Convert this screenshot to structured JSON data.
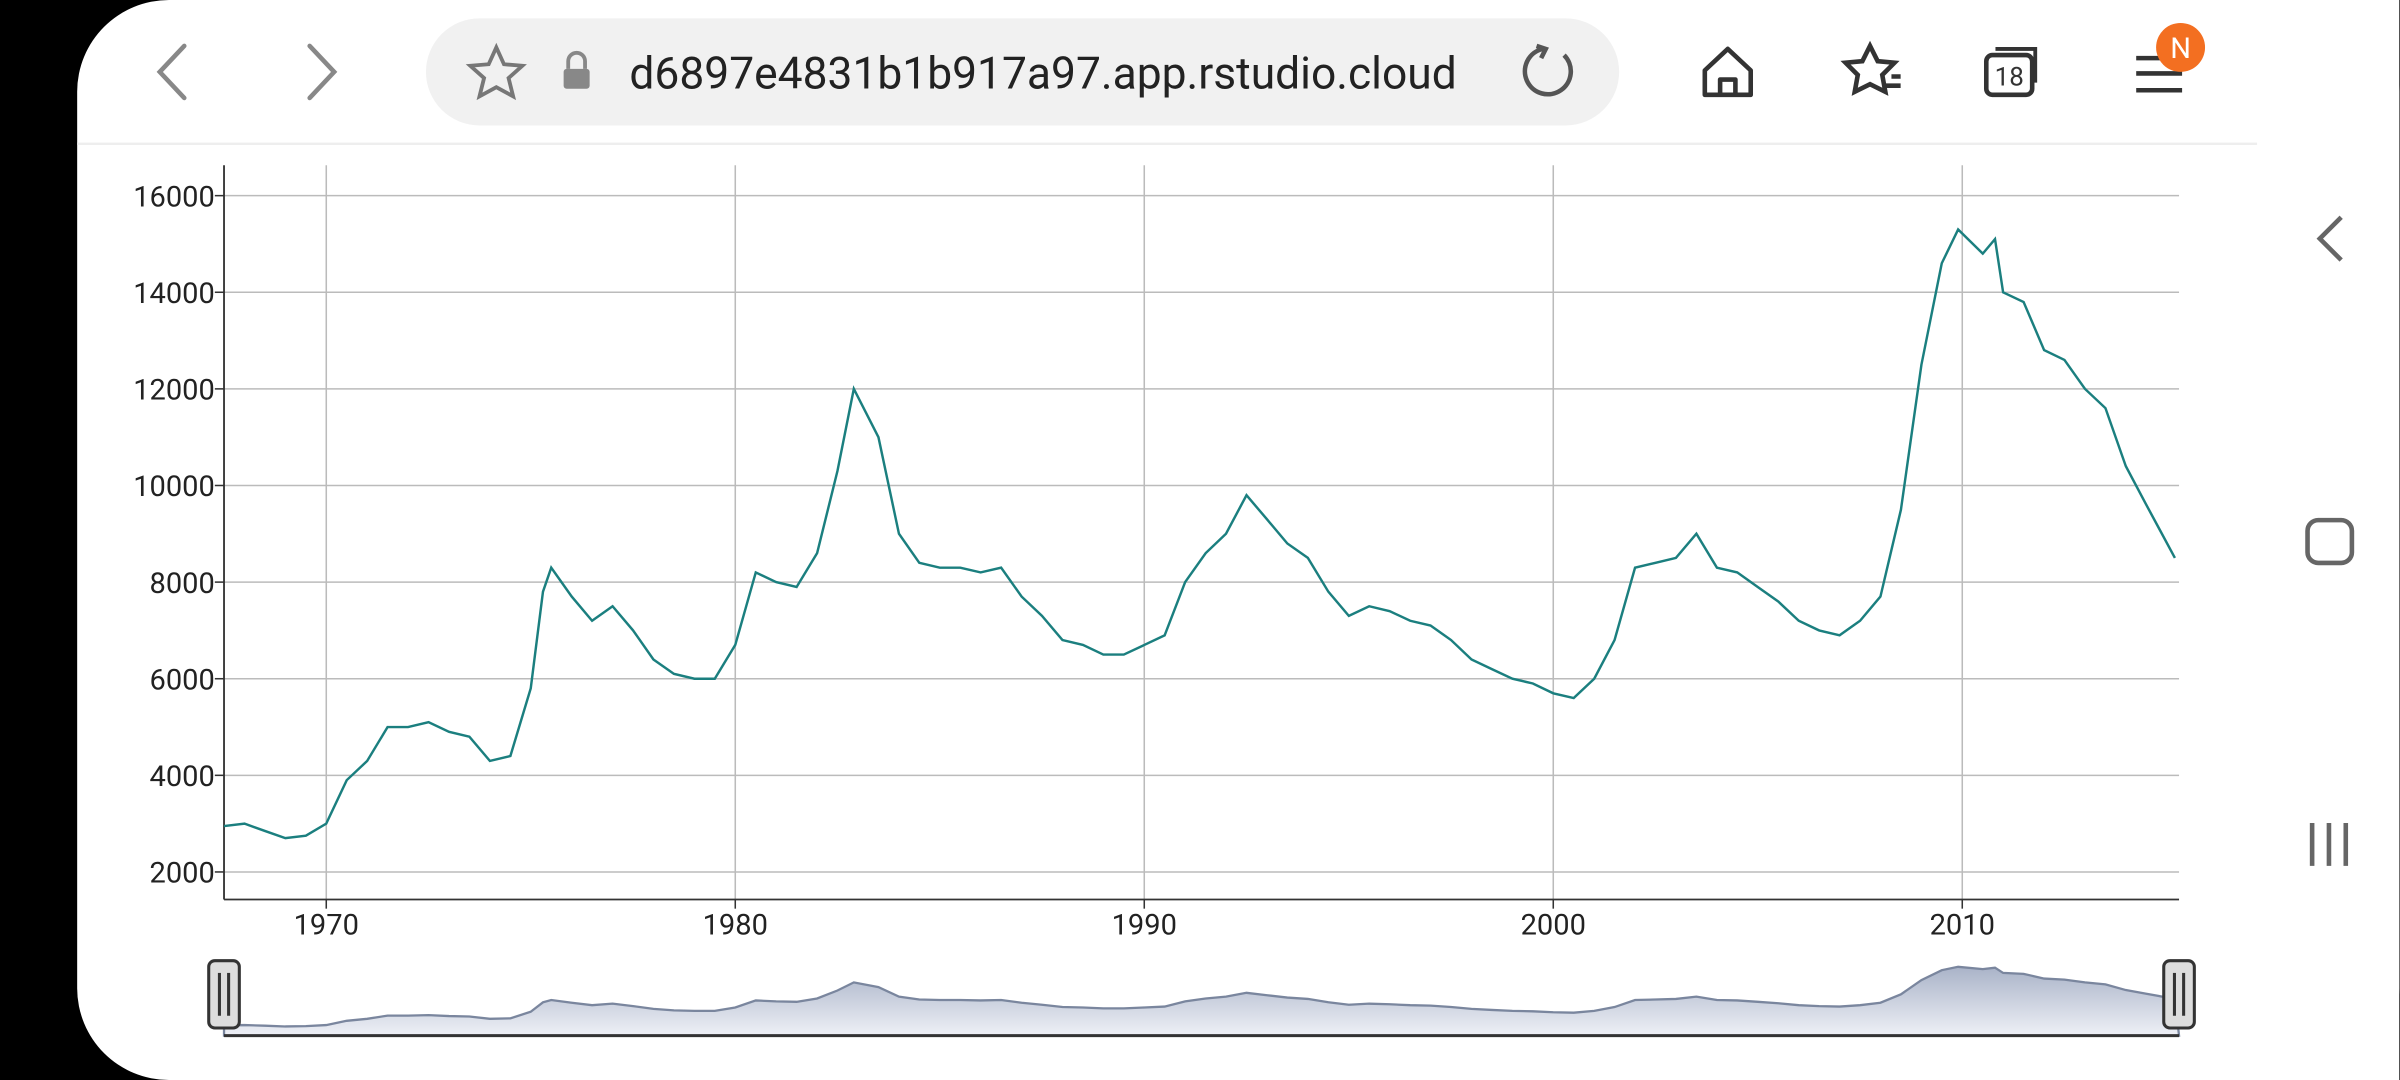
{
  "browser": {
    "url": "d6897e4831b1b917a97.app.rstudio.cloud",
    "tab_count": "18",
    "profile": "N"
  },
  "chart_data": {
    "type": "line",
    "color": "#1b7f7f",
    "grid": true,
    "x": [
      1967.5,
      1968.0,
      1968.5,
      1969.0,
      1969.5,
      1970.0,
      1970.5,
      1971.0,
      1971.5,
      1972.0,
      1972.5,
      1973.0,
      1973.5,
      1974.0,
      1974.5,
      1975.0,
      1975.3,
      1975.5,
      1976.0,
      1976.5,
      1977.0,
      1977.5,
      1978.0,
      1978.5,
      1979.0,
      1979.5,
      1980.0,
      1980.5,
      1981.0,
      1981.5,
      1982.0,
      1982.5,
      1982.9,
      1983.5,
      1984.0,
      1984.5,
      1985.0,
      1985.5,
      1986.0,
      1986.5,
      1987.0,
      1987.5,
      1988.0,
      1988.5,
      1989.0,
      1989.5,
      1990.0,
      1990.5,
      1991.0,
      1991.5,
      1992.0,
      1992.5,
      1993.0,
      1993.5,
      1994.0,
      1994.5,
      1995.0,
      1995.5,
      1996.0,
      1996.5,
      1997.0,
      1997.5,
      1998.0,
      1998.5,
      1999.0,
      1999.5,
      2000.0,
      2000.5,
      2001.0,
      2001.5,
      2002.0,
      2002.5,
      2003.0,
      2003.5,
      2004.0,
      2004.5,
      2005.0,
      2005.5,
      2006.0,
      2006.5,
      2007.0,
      2007.5,
      2008.0,
      2008.5,
      2009.0,
      2009.5,
      2009.9,
      2010.5,
      2010.8,
      2011.0,
      2011.5,
      2012.0,
      2012.5,
      2013.0,
      2013.5,
      2014.0,
      2014.5,
      2015.2
    ],
    "values": [
      2950,
      3000,
      2850,
      2700,
      2750,
      3000,
      3900,
      4300,
      5000,
      5000,
      5100,
      4900,
      4800,
      4300,
      4400,
      5800,
      7800,
      8300,
      7700,
      7200,
      7500,
      7000,
      6400,
      6100,
      6000,
      6000,
      6700,
      8200,
      8000,
      7900,
      8600,
      10300,
      12000,
      11000,
      9000,
      8400,
      8300,
      8300,
      8200,
      8300,
      7700,
      7300,
      6800,
      6700,
      6500,
      6500,
      6700,
      6900,
      8000,
      8600,
      9000,
      9800,
      9300,
      8800,
      8500,
      7800,
      7300,
      7500,
      7400,
      7200,
      7100,
      6800,
      6400,
      6200,
      6000,
      5900,
      5700,
      5600,
      6000,
      6800,
      8300,
      8400,
      8500,
      9000,
      8300,
      8200,
      7900,
      7600,
      7200,
      7000,
      6900,
      7200,
      7700,
      9500,
      12500,
      14600,
      15300,
      14800,
      15100,
      14000,
      13800,
      12800,
      12600,
      12000,
      11600,
      10400,
      9600,
      8500
    ],
    "xlim": [
      1967.5,
      2015.3
    ],
    "ylim": [
      1430,
      16630
    ],
    "xticks": [
      1970,
      1980,
      1990,
      2000,
      2010
    ],
    "yticks": [
      2000,
      4000,
      6000,
      8000,
      10000,
      12000,
      14000,
      16000
    ]
  }
}
